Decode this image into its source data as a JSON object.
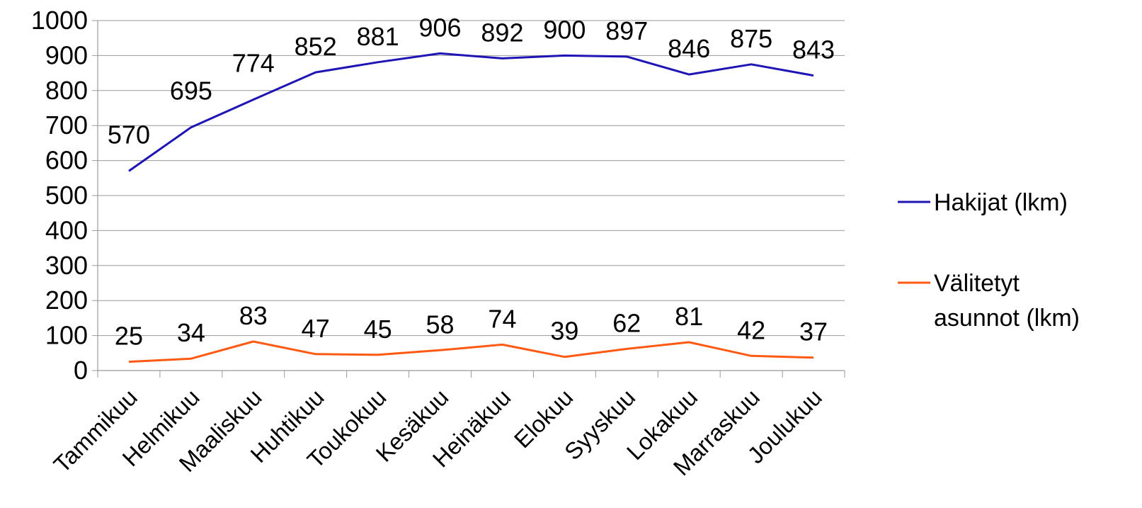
{
  "chart_data": {
    "type": "line",
    "categories": [
      "Tammikuu",
      "Helmikuu",
      "Maaliskuu",
      "Huhtikuu",
      "Toukokuu",
      "Kesäkuu",
      "Heinäkuu",
      "Elokuu",
      "Syyskuu",
      "Lokakuu",
      "Marraskuu",
      "Joulukuu"
    ],
    "series": [
      {
        "name": "Hakijat (lkm)",
        "color": "#1f14b4",
        "values": [
          570,
          695,
          774,
          852,
          881,
          906,
          892,
          900,
          897,
          846,
          875,
          843
        ]
      },
      {
        "name": "Välitetyt asunnot (lkm)",
        "color": "#ff5a14",
        "values": [
          25,
          34,
          83,
          47,
          45,
          58,
          74,
          39,
          62,
          81,
          42,
          37
        ]
      }
    ],
    "ylim": [
      0,
      1000
    ],
    "yticks": [
      0,
      100,
      200,
      300,
      400,
      500,
      600,
      700,
      800,
      900,
      1000
    ],
    "grid": true,
    "legend_position": "right",
    "data_labels": true
  }
}
